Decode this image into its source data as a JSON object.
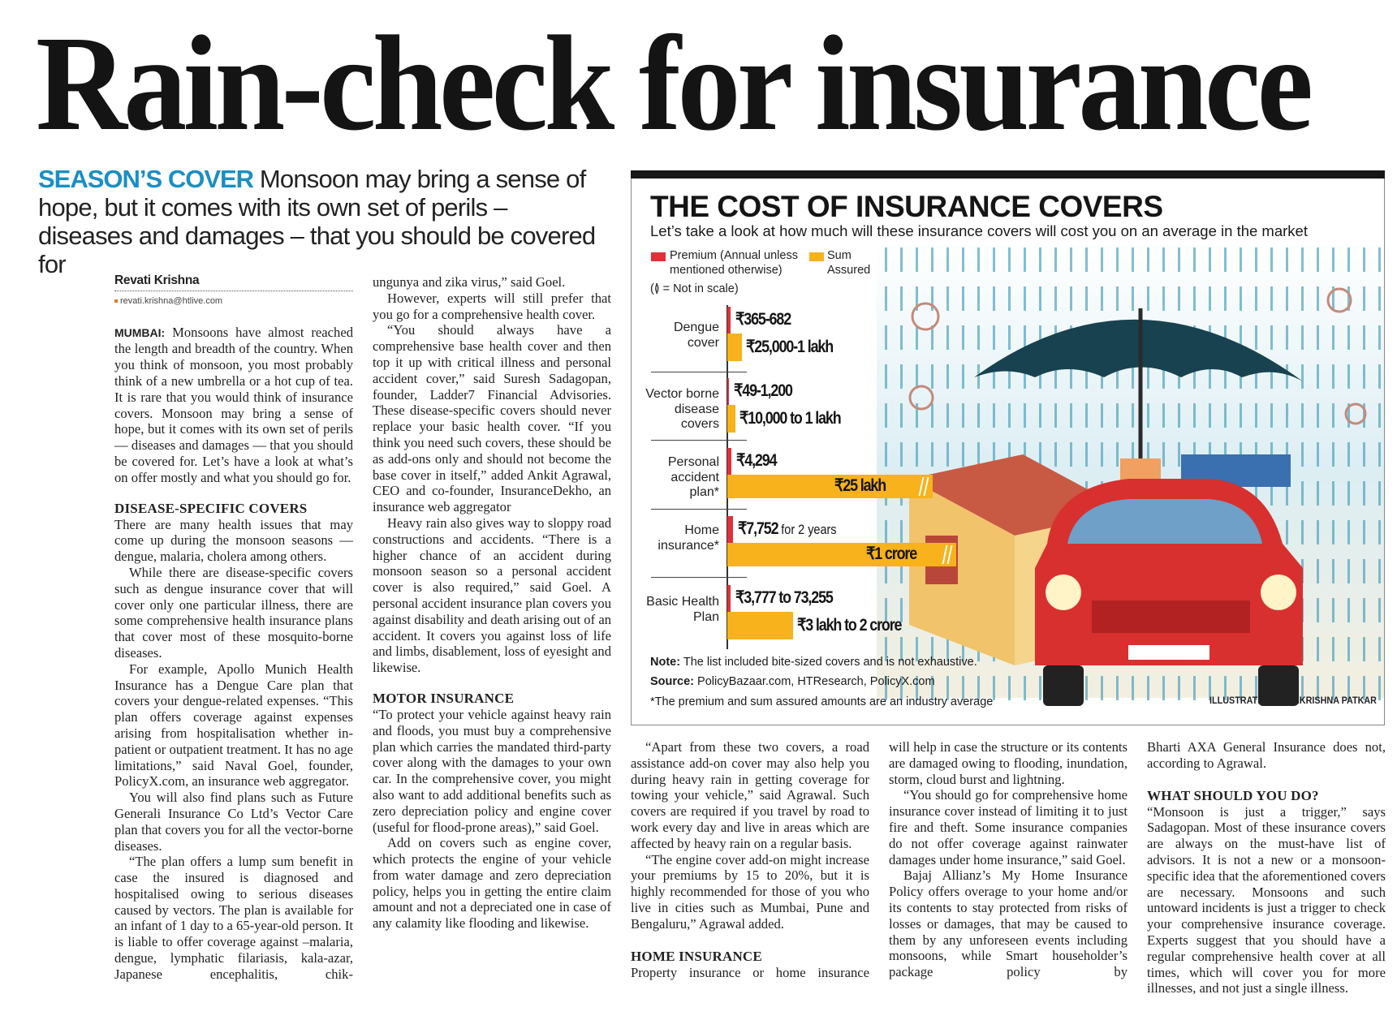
{
  "headline": "Rain-check for insurance",
  "deck": {
    "kicker": "SEASON’S COVER",
    "text": "Monsoon may bring a sense of hope, but it comes with its own set of perils – diseases and damages – that you should be covered for"
  },
  "byline": {
    "name": "Revati Krishna",
    "email": "revati.krishna@htlive.com"
  },
  "columns": {
    "c1": {
      "dateline": "MUMBAI:",
      "lead": "Monsoons have almost reached the length and breadth of the country. When you think of monsoon, you most probably think of a new umbrella or a hot cup of tea. It is rare that you would think of insurance covers. Monsoon may bring a sense of hope, but it comes with its own set of perils — diseases and damages — that you should be covered for. Let’s have a look at what’s on offer mostly and what you should go for.",
      "heading": "DISEASE-SPECIFIC COVERS",
      "p1": "There are many health issues that may come up during the monsoon seasons — dengue, malaria, cholera among others.",
      "p2": "While there are disease-specific covers such as dengue insurance cover that will cover only one particular illness, there are some comprehensive health insurance plans that cover most of these mosquito-borne diseases.",
      "p3": "For example, Apollo Munich Health Insurance has a Dengue Care plan that covers your dengue-related expenses. “This plan offers coverage against expenses arising from hospitalisation whether in-patient or outpatient treatment. It has no age limitations,” said Naval Goel, founder, PolicyX.com, an insurance web aggregator.",
      "p4": "You will also find plans such as Future Generali Insurance Co Ltd’s Vector Care plan that covers you for all the vector-borne diseases.",
      "p5": "“The plan offers a lump sum benefit in case the insured is diagnosed and hospitalised owing to serious diseases caused by vectors. The plan is available for an infant of 1 day to a 65-year-old person. It is liable to offer coverage against –malaria, dengue, lymphatic filariasis, kala-azar, Japanese encephalitis, chik-"
    },
    "c2": {
      "p0": "ungunya and zika virus,” said Goel.",
      "p1": "However, experts will still prefer that you go for a comprehensive health cover.",
      "p2": "“You should always have a comprehensive base health cover and then top it up with critical illness and personal accident cover,” said Suresh Sadagopan, founder, Ladder7 Financial Advisories. These disease-specific covers should never replace your basic health cover. “If you think you need such covers, these should be as add-ons only and should not become the base cover in itself,” added Ankit Agrawal, CEO and co-founder, InsuranceDekho, an insurance web aggregator",
      "p3": "Heavy rain also gives way to sloppy road constructions and accidents. “There is a higher chance of an accident during monsoon season so a personal accident cover is also required,” said Goel. A personal accident insurance plan covers you against disability and death arising out of an accident. It covers you against loss of life and limbs, disablement, loss of eyesight and likewise.",
      "heading": "MOTOR INSURANCE",
      "p4": "“To protect your vehicle against heavy rain and floods, you must buy a comprehensive plan which carries the mandated third-party cover along with the damages to your own car. In the comprehensive cover, you might also want to add additional benefits such as zero depreciation policy and engine cover (useful for flood-prone areas),” said Goel.",
      "p5": "Add on covers such as engine cover, which protects the engine of your vehicle from water damage and zero depreciation policy, helps you in getting the entire claim amount and not a depreciated one in case of any calamity like flooding and likewise."
    },
    "c3": {
      "p1": "“Apart from these two covers, a road assistance add-on cover may also help you during heavy rain in getting coverage for towing your vehicle,” said Agrawal. Such covers are required if you travel by road to work every day and live in areas which are affected by heavy rain on a regular basis.",
      "p2": "“The engine cover add-on might increase your premiums by 15 to 20%, but it is highly recommended for those of you who live in cities such as Mumbai, Pune and Bengaluru,” Agrawal added.",
      "heading": "HOME INSURANCE",
      "p3": "Property insurance or home insurance"
    },
    "c4": {
      "p0": "will help in case the structure or its contents are damaged owing to flooding, inundation, storm, cloud burst and lightning.",
      "p1": "“You should go for comprehensive home insurance cover instead of limiting it to just fire and theft. Some insurance companies do not offer coverage against rainwater damages under home insurance,” said Goel.",
      "p2": "Bajaj Allianz’s My Home Insurance Policy offers overage to your home and/or its contents to stay protected from risks of losses or damages, that may be caused to them by any unforeseen events including monsoons, while Smart householder’s package policy by"
    },
    "c5": {
      "p0": "Bharti AXA General Insurance does not, according to Agrawal.",
      "heading": "WHAT SHOULD YOU DO?",
      "p1": "“Monsoon is just a trigger,” says Sadagopan. Most of these insurance covers are always on the must-have list of advisors. It is not a new or a monsoon-specific idea that the aforementioned covers are necessary. Monsoons and such untoward incidents is just a trigger to check your comprehensive insurance coverage. Experts suggest that you should have a regular comprehensive health cover at all times, which will cover you for more illnesses, and not just a single illness."
    }
  },
  "infographic": {
    "title": "THE COST OF INSURANCE COVERS",
    "subtitle": "Let’s take a look at how much will these insurance covers will cost you on an average in the market",
    "legend_premium": "Premium (Annual unless mentioned otherwise)",
    "legend_sum": "Sum Assured",
    "scale_note": "(≬ = Not in scale)",
    "note_label": "Note:",
    "note": "The list included bite-sized covers and is not exhaustive.",
    "source_label": "Source:",
    "source": "PolicyBazaar.com, HTResearch, PolicyX.com",
    "footnote": "*The premium and sum assured amounts are an industry average",
    "credit": "ILLUSTRATION: SHRIKRISHNA PATKAR",
    "colors": {
      "premium": "#e0303a",
      "sum": "#f7b21c",
      "accent": "#1a8fc4"
    }
  },
  "chart_data": {
    "type": "bar",
    "orientation": "horizontal",
    "title": "THE COST OF INSURANCE COVERS",
    "categories": [
      "Dengue cover",
      "Vector borne disease covers",
      "Personal accident plan*",
      "Home insurance*",
      "Basic Health Plan"
    ],
    "series": [
      {
        "name": "Premium (Annual unless mentioned otherwise)",
        "labels": [
          "₹365-682",
          "₹49-1,200",
          "₹4,294",
          "₹7,752",
          "₹3,777 to 73,255"
        ],
        "label_suffix": [
          "",
          "",
          "",
          "for 2 years",
          ""
        ]
      },
      {
        "name": "Sum Assured",
        "labels": [
          "₹25,000-1 lakh",
          "₹10,000 to 1 lakh",
          "₹25 lakh",
          "₹1 crore",
          "₹3 lakh to 2 crore"
        ],
        "not_in_scale": [
          false,
          false,
          true,
          true,
          false
        ]
      }
    ]
  }
}
